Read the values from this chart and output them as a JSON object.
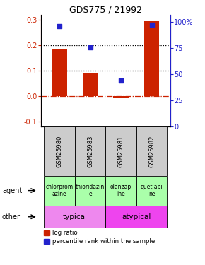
{
  "title": "GDS775 / 21992",
  "samples": [
    "GSM25980",
    "GSM25983",
    "GSM25981",
    "GSM25982"
  ],
  "log_ratios": [
    0.185,
    0.09,
    -0.005,
    0.295
  ],
  "percentile_ranks": [
    96,
    76,
    44,
    97
  ],
  "bar_color": "#cc2200",
  "dot_color": "#2222cc",
  "ylim_left": [
    -0.12,
    0.32
  ],
  "ylim_right": [
    0,
    107
  ],
  "yticks_left": [
    -0.1,
    0.0,
    0.1,
    0.2,
    0.3
  ],
  "yticks_right": [
    0,
    25,
    50,
    75,
    100
  ],
  "ytick_labels_right": [
    "0",
    "25",
    "50",
    "75",
    "100%"
  ],
  "hlines": [
    0.1,
    0.2
  ],
  "zero_line_color": "#cc2200",
  "agents": [
    "chlorprom\nazine",
    "thioridazin\ne",
    "olanzap\nine",
    "quetiapi\nne"
  ],
  "agent_color": "#aaffaa",
  "typical_label": "typical",
  "atypical_label": "atypical",
  "typical_color": "#ee88ee",
  "atypical_color": "#ee44ee",
  "agent_label": "agent",
  "other_label": "other",
  "legend_bar": "log ratio",
  "legend_dot": "percentile rank within the sample",
  "bar_width": 0.5,
  "gsm_bg": "#cccccc",
  "figsize": [
    2.9,
    3.75
  ],
  "dpi": 100
}
